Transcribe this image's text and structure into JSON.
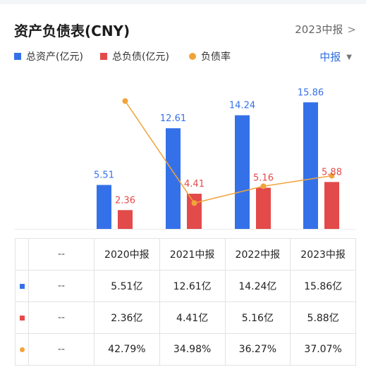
{
  "header": {
    "title": "资产负债表(CNY)",
    "period_label": "2023中报",
    "period_chevron": ">"
  },
  "legend": [
    {
      "label": "总资产(亿元)",
      "color": "#3471e9",
      "marker": "square"
    },
    {
      "label": "总负债(亿元)",
      "color": "#e34a4a",
      "marker": "square"
    },
    {
      "label": "负债率",
      "color": "#f1a33a",
      "marker": "dot"
    }
  ],
  "filter": {
    "label": "中报",
    "caret": "▼"
  },
  "chart_data": {
    "type": "bar",
    "categories": [
      "2020中报",
      "2021中报",
      "2022中报",
      "2023中报"
    ],
    "series": [
      {
        "name": "总资产(亿元)",
        "type": "bar",
        "color": "#3471e9",
        "values": [
          5.51,
          12.61,
          14.24,
          15.86
        ],
        "labels": [
          "5.51",
          "12.61",
          "14.24",
          "15.86"
        ]
      },
      {
        "name": "总负债(亿元)",
        "type": "bar",
        "color": "#e34a4a",
        "values": [
          2.36,
          4.41,
          5.16,
          5.88
        ],
        "labels": [
          "2.36",
          "4.41",
          "5.16",
          "5.88"
        ]
      },
      {
        "name": "负债率",
        "type": "line",
        "color": "#f1a33a",
        "values": [
          42.79,
          34.98,
          36.27,
          37.07
        ]
      }
    ],
    "ylim": [
      0,
      18
    ],
    "ratio_ylim": [
      33,
      44
    ],
    "grid": false
  },
  "table": {
    "header": [
      "--",
      "2020中报",
      "2021中报",
      "2022中报",
      "2023中报"
    ],
    "rows": [
      {
        "marker": "square",
        "color": "#3471e9",
        "cells": [
          "--",
          "5.51亿",
          "12.61亿",
          "14.24亿",
          "15.86亿"
        ]
      },
      {
        "marker": "square",
        "color": "#e34a4a",
        "cells": [
          "--",
          "2.36亿",
          "4.41亿",
          "5.16亿",
          "5.88亿"
        ]
      },
      {
        "marker": "dot",
        "color": "#f1a33a",
        "cells": [
          "--",
          "42.79%",
          "34.98%",
          "36.27%",
          "37.07%"
        ]
      }
    ]
  }
}
